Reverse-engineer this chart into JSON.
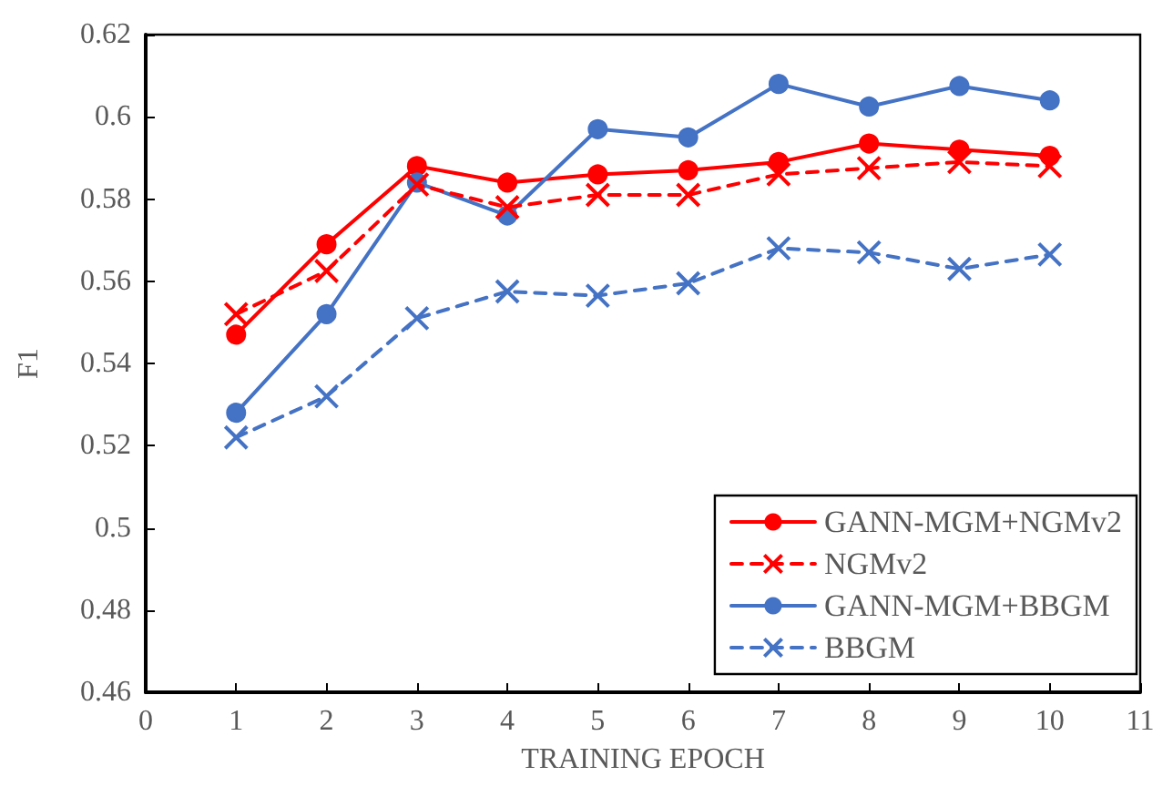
{
  "chart_data": {
    "type": "line",
    "xlabel": "TRAINING EPOCH",
    "ylabel": "F1",
    "x": [
      1,
      2,
      3,
      4,
      5,
      6,
      7,
      8,
      9,
      10
    ],
    "xlim": [
      0,
      11
    ],
    "xticks": [
      0,
      1,
      2,
      3,
      4,
      5,
      6,
      7,
      8,
      9,
      10,
      11
    ],
    "ylim": [
      0.46,
      0.62
    ],
    "yticks": [
      0.46,
      0.48,
      0.5,
      0.52,
      0.54,
      0.56,
      0.58,
      0.6,
      0.62
    ],
    "grid": false,
    "legend": "bottom right",
    "series": [
      {
        "name": "GANN-MGM+NGMv2",
        "color": "#ff0000",
        "marker": "circle",
        "line_style": "solid",
        "values": [
          0.547,
          0.569,
          0.588,
          0.584,
          0.586,
          0.587,
          0.589,
          0.5935,
          0.592,
          0.5905
        ]
      },
      {
        "name": "NGMv2",
        "color": "#ff0000",
        "marker": "cross",
        "line_style": "dashed",
        "values": [
          0.552,
          0.5625,
          0.5835,
          0.578,
          0.581,
          0.581,
          0.586,
          0.5875,
          0.589,
          0.588
        ]
      },
      {
        "name": "GANN-MGM+BBGM",
        "color": "#4472c4",
        "marker": "circle",
        "line_style": "solid",
        "values": [
          0.528,
          0.552,
          0.584,
          0.576,
          0.597,
          0.595,
          0.608,
          0.6025,
          0.6075,
          0.604
        ]
      },
      {
        "name": "BBGM",
        "color": "#4472c4",
        "marker": "cross",
        "line_style": "dashed",
        "values": [
          0.522,
          0.532,
          0.551,
          0.5575,
          0.5565,
          0.5595,
          0.568,
          0.567,
          0.563,
          0.5665
        ]
      }
    ]
  }
}
